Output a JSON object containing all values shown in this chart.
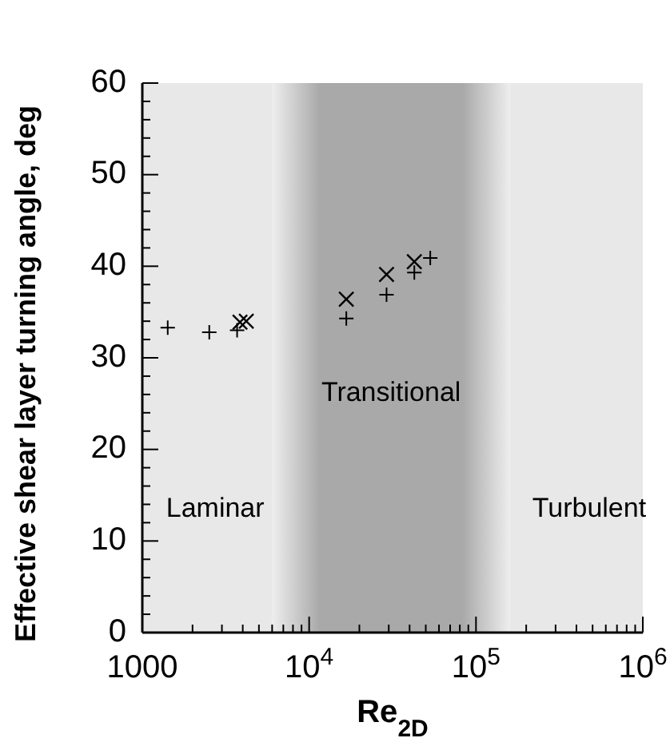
{
  "chart_data": {
    "type": "scatter",
    "ylabel": "Effective shear layer turning angle, deg",
    "xlabel": "Re$_{2D}$",
    "log": "x",
    "xlim": [
      1000,
      1000000
    ],
    "xticks": [
      1000,
      {
        "value": 10000,
        "label": "10$^{4}$"
      },
      {
        "value": 100000,
        "label": "10$^{5}$"
      },
      {
        "value": 1000000,
        "label": "10$^{6}$"
      }
    ],
    "ylim": [
      0,
      60
    ],
    "yticks": [
      0,
      10,
      20,
      30,
      40,
      50,
      60
    ],
    "grid": false,
    "series": [
      {
        "color": "#000000",
        "marker": "plus",
        "x": [
          1420,
          2520,
          3700,
          16700,
          29100,
          42700,
          53200
        ],
        "values": [
          33.3,
          32.8,
          33.0,
          34.3,
          36.9,
          39.3,
          40.9
        ]
      },
      {
        "color": "#000000",
        "marker": "cross",
        "x": [
          3850,
          4200,
          16700,
          29100,
          42700
        ],
        "values": [
          33.9,
          34.0,
          36.4,
          39.1,
          40.5
        ]
      }
    ],
    "bands": [
      {
        "axis": "x",
        "from": 1000,
        "to": 6000,
        "color": "#e8e8e8",
        "label": "Laminar"
      },
      {
        "axis": "x",
        "from": 6000,
        "to": 160000,
        "color": "#a9a9a9",
        "label": "Transitional"
      },
      {
        "axis": "x",
        "from": 160000,
        "to": 1000000,
        "color": "#e8e8e8",
        "label": "Turbulent"
      }
    ]
  }
}
